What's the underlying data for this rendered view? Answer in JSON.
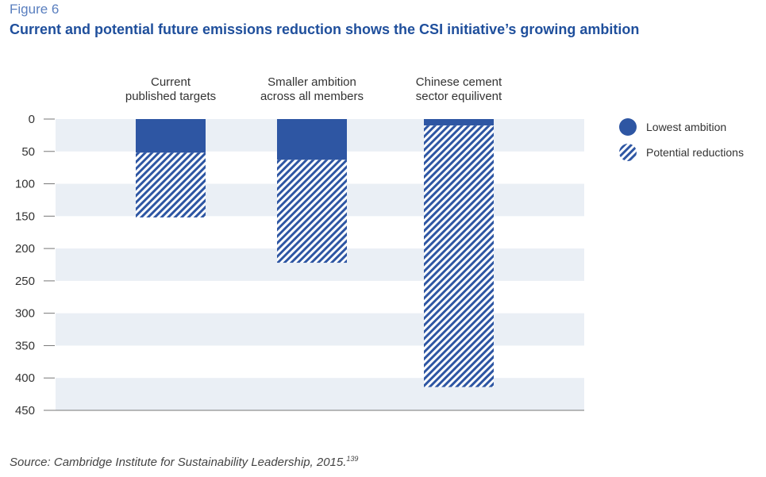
{
  "figure_label": "Figure 6",
  "title": "Current and potential future emissions reduction shows the CSI initiative’s growing ambition",
  "source_text": "Source: Cambridge Institute for Sustainability Leadership, 2015.",
  "source_ref": "139",
  "colors": {
    "solid": "#2e56a3",
    "hatch": "#2e56a3",
    "band": "#eaeff5",
    "axis": "#777777"
  },
  "chart_data": {
    "type": "bar",
    "stacked": true,
    "y_inverted": true,
    "categories": [
      [
        "Current",
        "published targets"
      ],
      [
        "Smaller ambition",
        "across all members"
      ],
      [
        "Chinese cement",
        "sector equilivent"
      ]
    ],
    "series": [
      {
        "name": "Lowest ambition",
        "style": "solid",
        "values": [
          52,
          63,
          10
        ]
      },
      {
        "name": "Potential reductions",
        "style": "hatched",
        "values": [
          100,
          159,
          404
        ]
      }
    ],
    "yticks": [
      0,
      50,
      100,
      150,
      200,
      250,
      300,
      350,
      400,
      450
    ],
    "ylim": [
      0,
      450
    ],
    "xlabel": "",
    "ylabel": "",
    "grid": "alternating horizontal bands",
    "legend_position": "right"
  }
}
